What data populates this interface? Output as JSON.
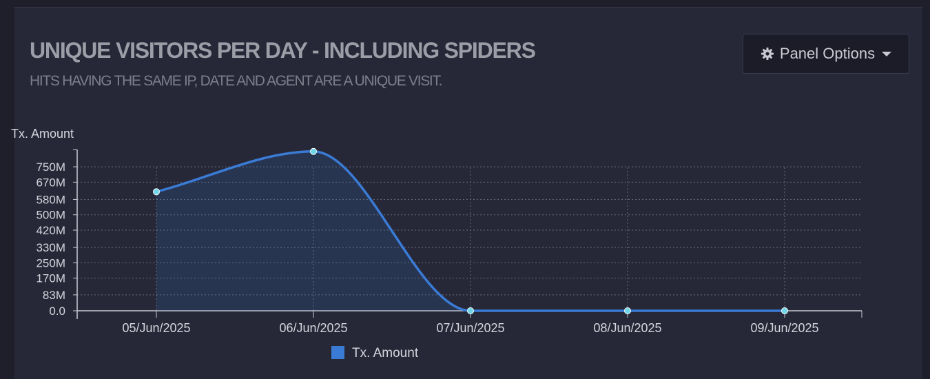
{
  "panel": {
    "title": "UNIQUE VISITORS PER DAY - INCLUDING SPIDERS",
    "subtitle": "HITS HAVING THE SAME IP, DATE AND AGENT ARE A UNIQUE VISIT.",
    "options_label": "Panel Options",
    "options_icon": "gear-icon",
    "dropdown_icon": "caret-down-icon"
  },
  "colors": {
    "series": "#3a7bd5",
    "marker": "#6fd6e8",
    "grid": "#6a6c7c",
    "axis": "#c9cad2",
    "text": "#d4d5dc"
  },
  "chart_data": {
    "type": "area",
    "ylabel": "Tx. Amount",
    "categories": [
      "05/Jun/2025",
      "06/Jun/2025",
      "07/Jun/2025",
      "08/Jun/2025",
      "09/Jun/2025"
    ],
    "series": [
      {
        "name": "Tx. Amount",
        "values": [
          620000000,
          830000000,
          0,
          0,
          0
        ]
      }
    ],
    "yticks": [
      "0.0",
      "83M",
      "170M",
      "250M",
      "330M",
      "420M",
      "500M",
      "580M",
      "670M",
      "750M"
    ],
    "ytick_values": [
      0,
      83000000,
      170000000,
      250000000,
      330000000,
      420000000,
      500000000,
      580000000,
      670000000,
      750000000
    ],
    "ylim": [
      0,
      840000000
    ],
    "grid": true,
    "legend": "bottom-center"
  }
}
